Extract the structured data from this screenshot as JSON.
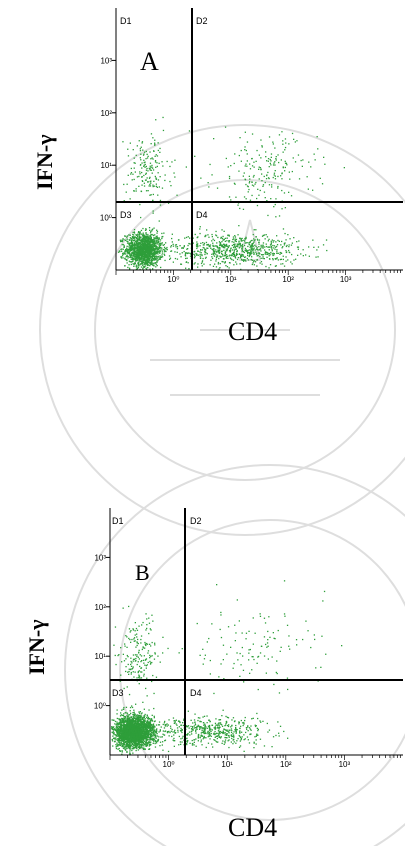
{
  "watermark": {
    "type": "seal",
    "color": "#dedede"
  },
  "colors": {
    "dots": "#2e9e3a",
    "axis": "#000000",
    "gate": "#000000"
  },
  "panels": [
    {
      "letter": "A",
      "ylabel": "IFN-γ",
      "xlabel": "CD4",
      "quadrants": [
        "D1",
        "D2",
        "D3",
        "D4"
      ],
      "y_ticks": [
        "10³",
        "10²",
        "10¹",
        "10⁰"
      ],
      "x_ticks": [
        "10⁰",
        "10¹",
        "10²",
        "10³"
      ]
    },
    {
      "letter": "B",
      "ylabel": "IFN-γ",
      "xlabel": "CD4",
      "quadrants": [
        "D1",
        "D2",
        "D3",
        "D4"
      ],
      "y_ticks": [
        "10³",
        "10²",
        "10¹",
        "10⁰"
      ],
      "x_ticks": [
        "10⁰",
        "10¹",
        "10²",
        "10³"
      ]
    }
  ],
  "chart_data": [
    {
      "type": "scatter",
      "scale": "log",
      "xlim": [
        0.1,
        10000
      ],
      "ylim": [
        0.1,
        10000
      ],
      "gate": {
        "x": 1.0,
        "y": 0.9
      },
      "clusters": [
        {
          "name": "D3 dense",
          "cx": 0.3,
          "cy": 0.25,
          "sx": 0.16,
          "sy": 0.16,
          "n": 1500
        },
        {
          "name": "D4 band",
          "cx": 12,
          "cy": 0.25,
          "sx": 0.55,
          "sy": 0.16,
          "n": 750
        },
        {
          "name": "D1 scatter",
          "cx": 0.35,
          "cy": 8,
          "sx": 0.2,
          "sy": 0.35,
          "n": 180
        },
        {
          "name": "D2 scatter",
          "cx": 40,
          "cy": 8,
          "sx": 0.45,
          "sy": 0.35,
          "n": 210
        }
      ]
    },
    {
      "type": "scatter",
      "scale": "log",
      "xlim": [
        0.1,
        10000
      ],
      "ylim": [
        0.1,
        10000
      ],
      "gate": {
        "x": 1.0,
        "y": 1.2
      },
      "clusters": [
        {
          "name": "D3 dense",
          "cx": 0.25,
          "cy": 0.3,
          "sx": 0.17,
          "sy": 0.16,
          "n": 2600
        },
        {
          "name": "D4 band",
          "cx": 5,
          "cy": 0.3,
          "sx": 0.5,
          "sy": 0.15,
          "n": 520
        },
        {
          "name": "D1 scatter",
          "cx": 0.3,
          "cy": 10,
          "sx": 0.18,
          "sy": 0.4,
          "n": 190
        },
        {
          "name": "D2 scatter",
          "cx": 30,
          "cy": 15,
          "sx": 0.55,
          "sy": 0.45,
          "n": 120
        }
      ]
    }
  ]
}
